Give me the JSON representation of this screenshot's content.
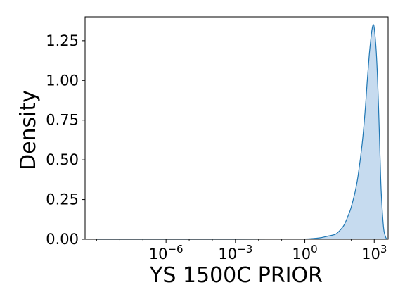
{
  "chart_data": {
    "type": "area",
    "title": "",
    "xlabel": "YS 1500C PRIOR",
    "ylabel": "Density",
    "xscale": "log",
    "x_exponent_range": [
      -9.5,
      3.6
    ],
    "ylim": [
      0,
      1.4
    ],
    "grid": false,
    "legend": "none",
    "x_ticks": [
      {
        "base": "10",
        "exp": "−6",
        "value": 1e-06
      },
      {
        "base": "10",
        "exp": "−3",
        "value": 0.001
      },
      {
        "base": "10",
        "exp": "0",
        "value": 1
      },
      {
        "base": "10",
        "exp": "3",
        "value": 1000
      }
    ],
    "y_ticks": [
      "0.00",
      "0.25",
      "0.50",
      "0.75",
      "1.00",
      "1.25"
    ],
    "y_tick_values": [
      0,
      0.25,
      0.5,
      0.75,
      1.0,
      1.25
    ],
    "series": [
      {
        "fill": "#c6dbef",
        "stroke": "#1f77b4",
        "x": [
          1e-09,
          1e-06,
          0.001,
          0.1,
          1,
          2,
          3,
          5,
          10,
          20,
          30,
          50,
          80,
          100,
          150,
          200,
          300,
          400,
          500,
          600,
          700,
          800,
          900,
          1000,
          1200,
          1400,
          1600,
          1800,
          2000,
          2500,
          3000,
          3500
        ],
        "y": [
          0.0,
          0.0,
          0.0,
          0.0005,
          0.002,
          0.004,
          0.006,
          0.01,
          0.02,
          0.03,
          0.05,
          0.09,
          0.16,
          0.2,
          0.3,
          0.4,
          0.6,
          0.8,
          1.0,
          1.15,
          1.25,
          1.32,
          1.35,
          1.33,
          1.2,
          1.0,
          0.75,
          0.5,
          0.3,
          0.08,
          0.02,
          0.0
        ]
      }
    ]
  }
}
